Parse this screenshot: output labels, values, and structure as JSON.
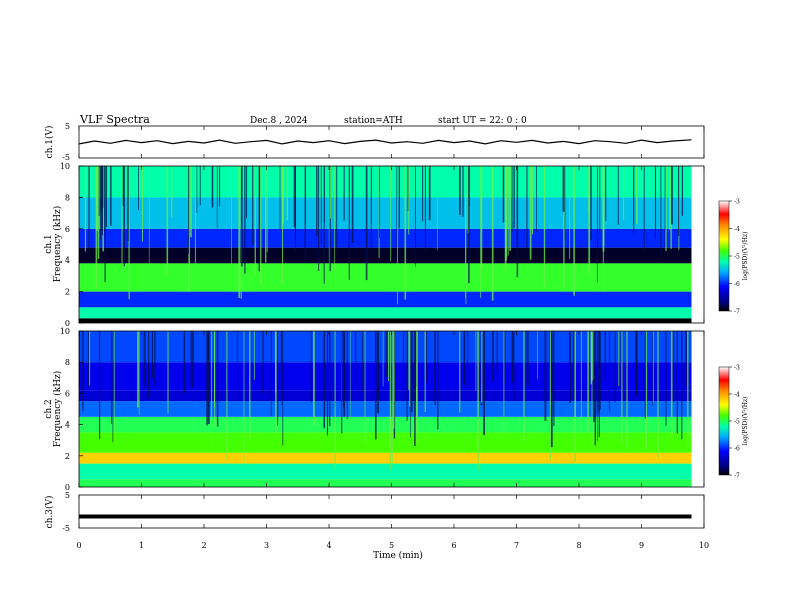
{
  "header": {
    "title": "VLF  Spectra",
    "date": "Dec.8  , 2024",
    "station": "station=ATH",
    "start_ut": "start  UT  =    22: 0   : 0"
  },
  "chart_data": [
    {
      "panel": "ch1-waveform",
      "type": "line",
      "ylabel": "ch.1(V)",
      "ylim": [
        -5,
        5
      ],
      "y_ticks": [
        "5",
        "-5"
      ],
      "x": [
        0,
        0.25,
        0.5,
        0.75,
        1,
        1.25,
        1.5,
        1.75,
        2,
        2.25,
        2.5,
        2.75,
        3,
        3.25,
        3.5,
        3.75,
        4,
        4.25,
        4.5,
        4.75,
        5,
        5.25,
        5.5,
        5.75,
        6,
        6.25,
        6.5,
        6.75,
        7,
        7.25,
        7.5,
        7.75,
        8,
        8.25,
        8.5,
        8.75,
        9,
        9.25,
        9.5,
        9.8
      ],
      "y": [
        -0.6,
        0.3,
        -0.4,
        0.5,
        -0.2,
        0.4,
        -0.5,
        0.2,
        -0.3,
        0.6,
        -0.4,
        0.1,
        0.5,
        -0.6,
        0.3,
        -0.2,
        0.4,
        -0.5,
        0.2,
        0.6,
        -0.3,
        0.1,
        -0.4,
        0.5,
        -0.2,
        0.3,
        -0.6,
        0.4,
        -0.1,
        0.5,
        -0.3,
        0.2,
        -0.5,
        0.4,
        0.1,
        -0.4,
        0.6,
        -0.2,
        0.3,
        0.7
      ]
    },
    {
      "panel": "ch1-spectrogram",
      "type": "heatmap",
      "ylabel": "Frequency  (kHz)",
      "channel_label": "ch.1",
      "ylim": [
        0,
        10
      ],
      "y_ticks": [
        "0",
        "2",
        "4",
        "6",
        "8",
        "10"
      ],
      "x_range_min": [
        0,
        9.8
      ],
      "freq_bands_khz": [
        [
          0,
          0.3
        ],
        [
          0.3,
          1.0
        ],
        [
          1.0,
          2.0
        ],
        [
          2.0,
          3.8
        ],
        [
          3.8,
          4.8
        ],
        [
          4.8,
          6.0
        ],
        [
          6.0,
          8.0
        ],
        [
          8.0,
          10.0
        ]
      ],
      "band_log_psd": [
        -7.0,
        -5.2,
        -6.0,
        -4.9,
        -6.9,
        -6.0,
        -5.5,
        -5.2
      ],
      "colorbar": {
        "label": "log(PSD)(V²/Hz)",
        "ticks": [
          "-3",
          "-4",
          "-5",
          "-6",
          "-7"
        ],
        "range": [
          -7,
          -3
        ]
      }
    },
    {
      "panel": "ch2-spectrogram",
      "type": "heatmap",
      "ylabel": "Frequency  (kHz)",
      "channel_label": "ch.2",
      "ylim": [
        0,
        10
      ],
      "y_ticks": [
        "0",
        "2",
        "4",
        "6",
        "8",
        "10"
      ],
      "x_range_min": [
        0,
        9.8
      ],
      "freq_bands_khz": [
        [
          0,
          0.5
        ],
        [
          0.5,
          1.5
        ],
        [
          1.5,
          2.2
        ],
        [
          2.2,
          3.5
        ],
        [
          3.5,
          4.5
        ],
        [
          4.5,
          5.5
        ],
        [
          5.5,
          6.2
        ],
        [
          6.2,
          8.0
        ],
        [
          8.0,
          10.0
        ]
      ],
      "band_log_psd": [
        -5.0,
        -5.2,
        -4.2,
        -4.8,
        -5.0,
        -5.8,
        -6.3,
        -6.2,
        -5.9
      ],
      "colorbar": {
        "label": "log(PSD)(V²/Hz)",
        "ticks": [
          "-3",
          "-4",
          "-5",
          "-6",
          "-7"
        ],
        "range": [
          -7,
          -3
        ]
      }
    },
    {
      "panel": "ch3-waveform",
      "type": "line",
      "ylabel": "ch.3(V)",
      "ylim": [
        -5,
        5
      ],
      "y_ticks": [
        "5",
        "-5"
      ],
      "x": [
        0,
        9.8
      ],
      "y": [
        -1.5,
        -1.5
      ]
    }
  ],
  "x_axis": {
    "label": "Time  (min)",
    "range": [
      0,
      10
    ],
    "ticks": [
      "0",
      "1",
      "2",
      "3",
      "4",
      "5",
      "6",
      "7",
      "8",
      "9",
      "10"
    ]
  }
}
